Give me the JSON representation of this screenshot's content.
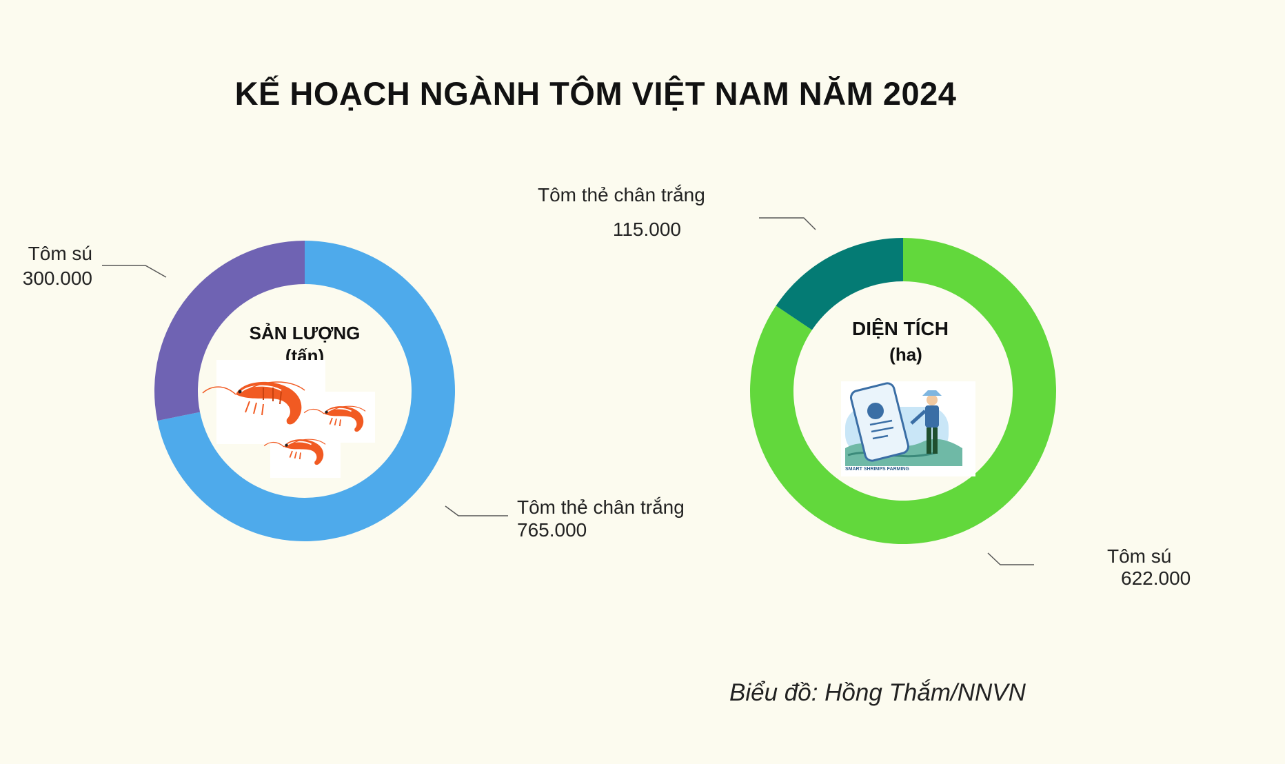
{
  "title": "KẾ HOẠCH NGÀNH TÔM VIỆT NAM NĂM 2024",
  "credit": "Biểu đồ: Hồng Thắm/NNVN",
  "chart_data": [
    {
      "type": "pie",
      "center_label": [
        "SẢN LƯỢNG",
        "(tấn)"
      ],
      "icon": "shrimp-icon",
      "slices": [
        {
          "label": "Tôm thẻ chân trắng",
          "value": 765000,
          "value_text": "765.000",
          "color": "#4eaaeb"
        },
        {
          "label": "Tôm sú",
          "value": 300000,
          "value_text": "300.000",
          "color": "#6f63b3"
        }
      ]
    },
    {
      "type": "pie",
      "center_label": [
        "DIỆN TÍCH",
        "(ha)"
      ],
      "icon": "smart-shrimp-farming-icon",
      "icon_caption": "SMART SHRIMPS FARMING",
      "slices": [
        {
          "label": "Tôm sú",
          "value": 622000,
          "value_text": "622.000",
          "color": "#62d83c"
        },
        {
          "label": "Tôm thẻ chân trắng",
          "value": 115000,
          "value_text": "115.000",
          "color": "#047b74"
        }
      ]
    }
  ]
}
